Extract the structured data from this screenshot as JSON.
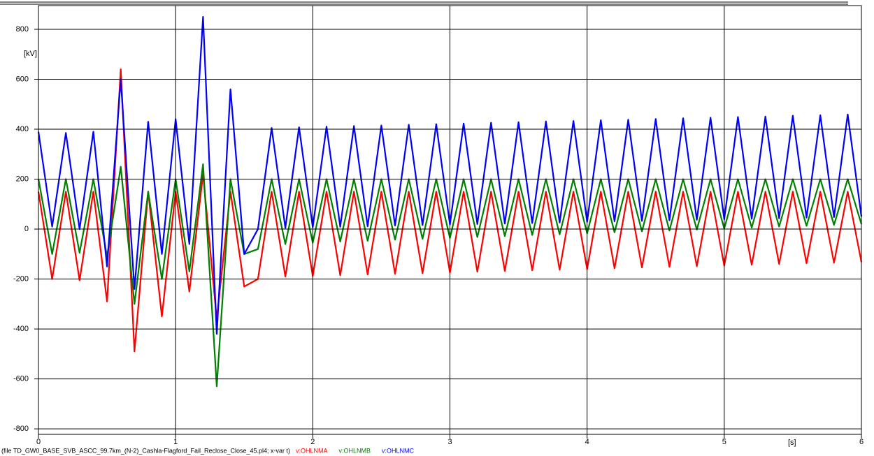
{
  "chart_data": {
    "type": "line",
    "y_label": "[kV]",
    "x_label": "[s]",
    "footer": "(file TD_GW0_BASE_SVB_ASCC_99.7km_(N-2)_Cashla-Flagford_Fail_Reclose_Close_45.pl4; x-var t)",
    "xlim": [
      0,
      6
    ],
    "xticks": [
      0,
      1,
      2,
      3,
      4,
      5,
      6
    ],
    "ylim": [
      -822,
      895
    ],
    "yticks": [
      -800,
      -600,
      -400,
      -200,
      0,
      200,
      400,
      600,
      800
    ],
    "grid": true,
    "x": [
      0,
      0.1,
      0.2,
      0.3,
      0.4,
      0.5,
      0.6,
      0.7,
      0.8,
      0.9,
      1,
      1.1,
      1.2,
      1.3,
      1.4,
      1.5,
      1.6,
      1.7,
      1.8,
      1.9,
      2,
      2.1,
      2.2,
      2.3,
      2.4,
      2.5,
      2.6,
      2.7,
      2.8,
      2.9,
      3,
      3.1,
      3.2,
      3.3,
      3.4,
      3.5,
      3.6,
      3.7,
      3.8,
      3.9,
      4,
      4.1,
      4.2,
      4.3,
      4.4,
      4.5,
      4.6,
      4.7,
      4.8,
      4.9,
      5,
      5.1,
      5.2,
      5.3,
      5.4,
      5.5,
      5.6,
      5.7,
      5.8,
      5.9,
      6
    ],
    "series": [
      {
        "name": "v:OHLNMA",
        "color": "#ff0000",
        "values": [
          150,
          -200,
          150,
          -205,
          150,
          -290,
          640,
          -490,
          150,
          -350,
          150,
          -250,
          220,
          -360,
          150,
          -230,
          -200,
          150,
          -190,
          150,
          -188,
          150,
          -185,
          150,
          -182,
          150,
          -179,
          150,
          -177,
          150,
          -174,
          150,
          -171,
          150,
          -168,
          150,
          -165,
          150,
          -163,
          150,
          -160,
          150,
          -157,
          150,
          -154,
          150,
          -151,
          150,
          -149,
          150,
          -146,
          150,
          -143,
          150,
          -140,
          150,
          -137,
          150,
          -135,
          150,
          -132
        ]
      },
      {
        "name": "v:OHLNMB",
        "color": "#008000",
        "values": [
          200,
          -100,
          200,
          -95,
          200,
          -110,
          250,
          -300,
          150,
          -200,
          200,
          -170,
          260,
          -630,
          200,
          -100,
          -80,
          200,
          -60,
          200,
          -55,
          200,
          -50,
          200,
          -47,
          200,
          -43,
          200,
          -39,
          200,
          -36,
          200,
          -32,
          200,
          -28,
          200,
          -24,
          200,
          -21,
          200,
          -17,
          200,
          -13,
          200,
          -9,
          200,
          -6,
          200,
          -2,
          200,
          2,
          200,
          6,
          200,
          10,
          200,
          13,
          200,
          17,
          200,
          20
        ]
      },
      {
        "name": "v:OHLNMC",
        "color": "#0000ff",
        "values": [
          390,
          10,
          385,
          0,
          390,
          -150,
          600,
          -240,
          430,
          -100,
          440,
          -60,
          850,
          -420,
          560,
          -100,
          0,
          405,
          5,
          408,
          7,
          410,
          9,
          413,
          11,
          415,
          14,
          418,
          16,
          420,
          18,
          423,
          20,
          426,
          22,
          428,
          24,
          431,
          26,
          433,
          29,
          436,
          31,
          438,
          33,
          441,
          35,
          444,
          37,
          446,
          39,
          449,
          41,
          451,
          43,
          454,
          46,
          456,
          48,
          459,
          50
        ]
      }
    ]
  }
}
